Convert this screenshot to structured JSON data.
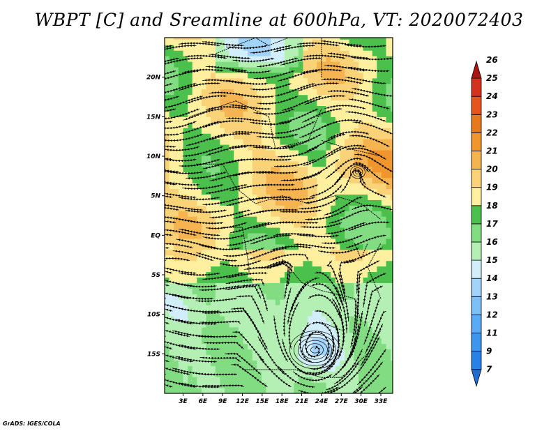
{
  "title": "WBPT [C] and Sreamline at 600hPa, VT: 2020072403",
  "credit": "GrADS: IGES/COLA",
  "chart_data": {
    "type": "heatmap",
    "variable": "Wet-bulb potential temperature (WBPT) with streamlines",
    "level": "600hPa",
    "valid_time": "2020072403",
    "x_ticks": [
      "3E",
      "6E",
      "9E",
      "12E",
      "15E",
      "18E",
      "21E",
      "24E",
      "27E",
      "30E",
      "33E"
    ],
    "x_tick_values": [
      3,
      6,
      9,
      12,
      15,
      18,
      21,
      24,
      27,
      30,
      33
    ],
    "y_ticks": [
      "20N",
      "15N",
      "10N",
      "5N",
      "EQ",
      "5S",
      "10S",
      "15S"
    ],
    "y_tick_values": [
      20,
      15,
      10,
      5,
      0,
      -5,
      -10,
      -15
    ],
    "xlim": [
      0.2,
      34.8
    ],
    "ylim": [
      -20.0,
      25.0
    ],
    "colorbar": {
      "labels": [
        "7",
        "9",
        "11",
        "12",
        "13",
        "14",
        "15",
        "16",
        "17",
        "18",
        "19",
        "20",
        "21",
        "22",
        "23",
        "24",
        "25",
        "26"
      ],
      "colors": [
        "#1e6ed2",
        "#2882e6",
        "#3c96f0",
        "#5aaaf5",
        "#7dc0f8",
        "#a2d4fa",
        "#d2eefa",
        "#b4f0b4",
        "#82dc82",
        "#4cc04c",
        "#fff0a0",
        "#fad278",
        "#f5b450",
        "#f0962d",
        "#e6781e",
        "#e6551e",
        "#d2321e",
        "#aa1414"
      ]
    },
    "centers": [
      {
        "type": "anticyclonic eddy",
        "lon": 23.0,
        "lat": -14.5
      },
      {
        "type": "cyclonic eddy",
        "lon": 29.5,
        "lat": 8.0
      }
    ]
  }
}
